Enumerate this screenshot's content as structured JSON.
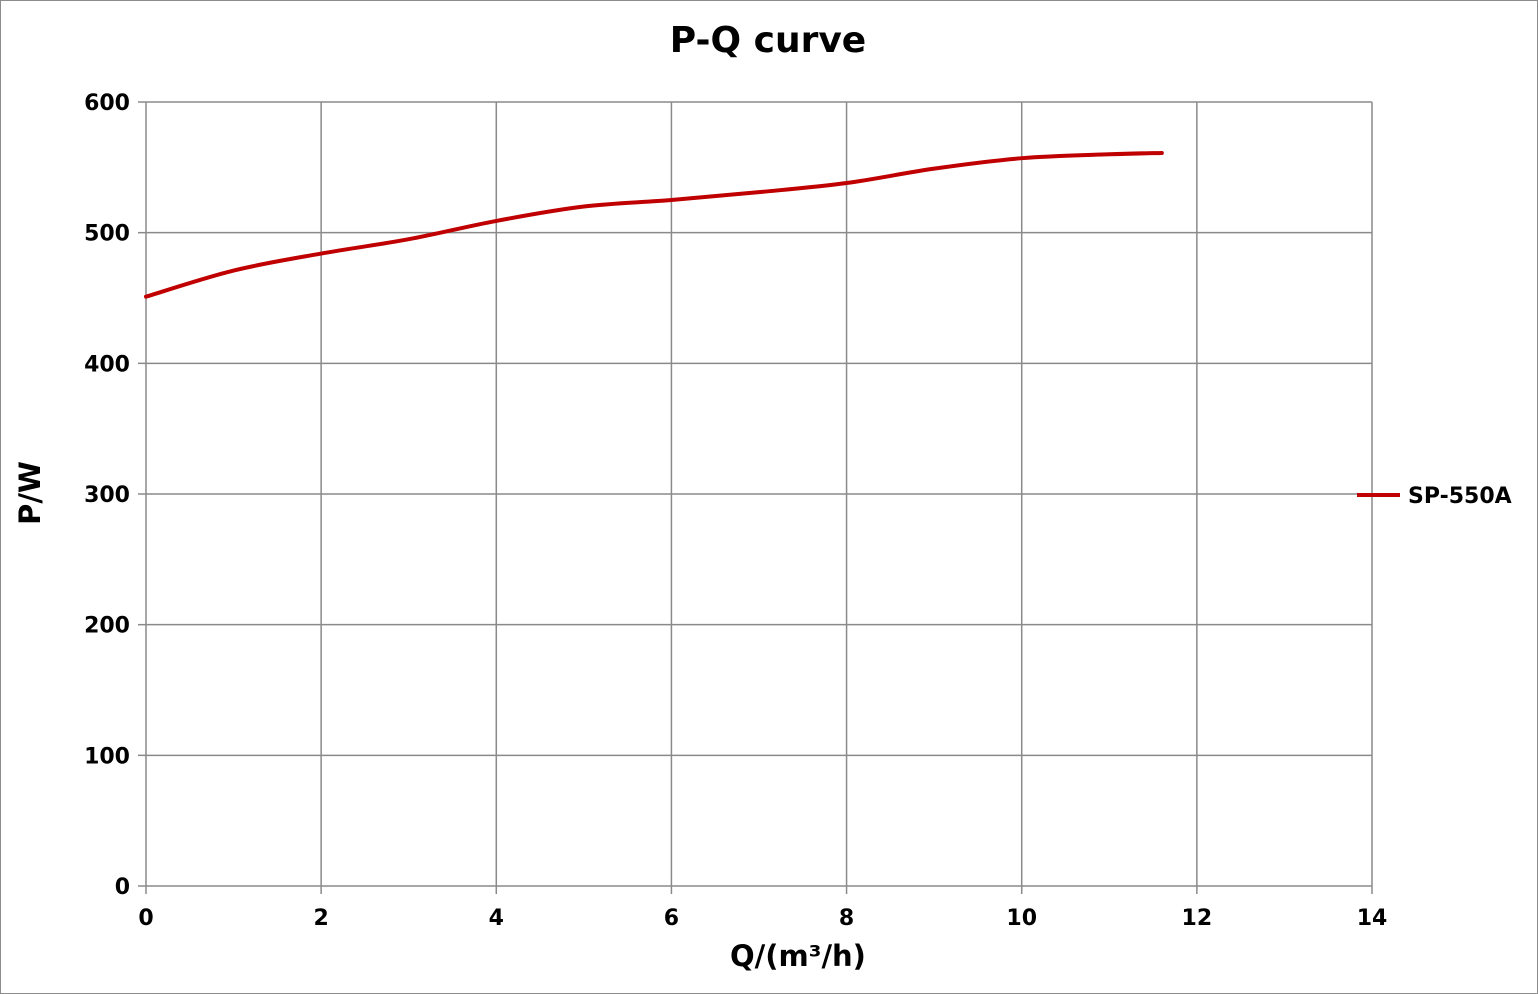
{
  "chart_data": {
    "type": "line",
    "title": "P-Q  curve",
    "xlabel": "Q/(m³/h)",
    "ylabel": "P/W",
    "xlim": [
      0,
      14
    ],
    "ylim": [
      0,
      600
    ],
    "x_ticks": [
      "0",
      "2",
      "4",
      "6",
      "8",
      "10",
      "12",
      "14"
    ],
    "y_ticks": [
      "0",
      "100",
      "200",
      "300",
      "400",
      "500",
      "600"
    ],
    "grid": true,
    "legend_position": "right",
    "series": [
      {
        "name": "SP-550A",
        "color": "#c00000",
        "x": [
          0,
          1,
          2,
          3,
          4,
          5,
          6,
          7,
          8,
          9,
          10,
          11,
          11.6
        ],
        "y": [
          451,
          471,
          484,
          495,
          509,
          520,
          525,
          531,
          538,
          549,
          557,
          560,
          561
        ]
      }
    ]
  }
}
